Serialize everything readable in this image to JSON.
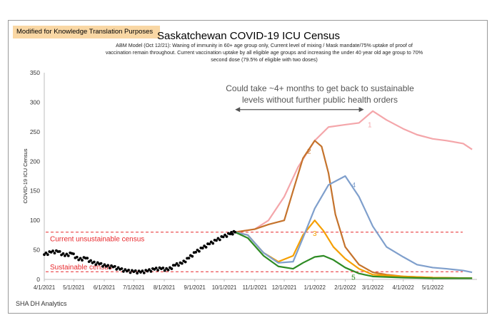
{
  "banner": "Modified for Knowledge Translation Purposes",
  "footer": "SHA DH Analytics",
  "chart_data": {
    "type": "line",
    "title": "Saskatchewan COVID-19 ICU Census",
    "subtitle_lines": [
      "ABM Model (Oct 12/21): Waning of immunity in 60+ age group only, Current level of mixing / Mask mandate/75% uptake of proof of",
      "vaccination remain throughout.  Current vaccination uptake by all eligible age groups and increasing the under 40 year old age group to 70%",
      "second dose (79.5% of eligible with two doses)"
    ],
    "ylabel": "COVID-19 ICU Census",
    "ylim": [
      0,
      350
    ],
    "yticks": [
      0,
      50,
      100,
      150,
      200,
      250,
      300,
      350
    ],
    "xlim": [
      "2021-04-01",
      "2022-06-15"
    ],
    "xticks": [
      "2021-04-01",
      "2021-05-01",
      "2021-06-01",
      "2021-07-01",
      "2021-08-01",
      "2021-09-01",
      "2021-10-01",
      "2021-11-01",
      "2021-12-01",
      "2022-01-01",
      "2022-02-01",
      "2022-03-01",
      "2022-04-01",
      "2022-05-01"
    ],
    "xtick_labels": [
      "4/1/2021",
      "5/1/2021",
      "6/1/2021",
      "7/1/2021",
      "8/1/2021",
      "9/1/2021",
      "10/1/2021",
      "11/1/2021",
      "12/1/2021",
      "1/1/2022",
      "2/1/2022",
      "3/1/2022",
      "4/1/2022",
      "5/1/2022"
    ],
    "observed": {
      "color": "#000000",
      "x": [
        "2021-04-01",
        "2021-04-08",
        "2021-04-15",
        "2021-04-22",
        "2021-04-29",
        "2021-05-06",
        "2021-05-13",
        "2021-05-20",
        "2021-05-27",
        "2021-06-03",
        "2021-06-10",
        "2021-06-17",
        "2021-06-24",
        "2021-07-01",
        "2021-07-08",
        "2021-07-15",
        "2021-07-22",
        "2021-07-29",
        "2021-08-05",
        "2021-08-12",
        "2021-08-19",
        "2021-08-26",
        "2021-09-02",
        "2021-09-09",
        "2021-09-16",
        "2021-09-23",
        "2021-09-30",
        "2021-10-07",
        "2021-10-12"
      ],
      "y": [
        42,
        46,
        47,
        40,
        44,
        33,
        36,
        28,
        26,
        22,
        21,
        17,
        14,
        13,
        12,
        14,
        17,
        18,
        16,
        24,
        27,
        36,
        46,
        53,
        60,
        66,
        72,
        77,
        80
      ]
    },
    "series": [
      {
        "name": "1",
        "color": "#f4a6aa",
        "x": [
          "2021-10-12",
          "2021-11-01",
          "2021-11-15",
          "2021-12-01",
          "2021-12-15",
          "2022-01-01",
          "2022-01-15",
          "2022-02-01",
          "2022-02-15",
          "2022-03-01",
          "2022-03-15",
          "2022-04-01",
          "2022-04-15",
          "2022-05-01",
          "2022-05-15",
          "2022-06-01",
          "2022-06-10"
        ],
        "y": [
          80,
          85,
          100,
          140,
          190,
          235,
          258,
          262,
          265,
          285,
          270,
          255,
          245,
          238,
          235,
          230,
          220
        ]
      },
      {
        "name": "2",
        "color": "#c5732c",
        "x": [
          "2021-10-12",
          "2021-11-01",
          "2021-11-15",
          "2021-12-01",
          "2021-12-10",
          "2021-12-20",
          "2022-01-01",
          "2022-01-08",
          "2022-01-15",
          "2022-01-22",
          "2022-02-01",
          "2022-02-15",
          "2022-03-01",
          "2022-03-15",
          "2022-04-01",
          "2022-05-01",
          "2022-06-10"
        ],
        "y": [
          80,
          85,
          93,
          100,
          150,
          205,
          235,
          225,
          180,
          110,
          55,
          25,
          12,
          8,
          5,
          3,
          2
        ]
      },
      {
        "name": "3",
        "color": "#f59f00",
        "x": [
          "2021-10-12",
          "2021-10-25",
          "2021-11-10",
          "2021-11-25",
          "2021-12-10",
          "2021-12-20",
          "2022-01-01",
          "2022-01-10",
          "2022-01-20",
          "2022-02-01",
          "2022-02-15",
          "2022-03-01",
          "2022-04-01",
          "2022-05-01",
          "2022-06-10"
        ],
        "y": [
          80,
          75,
          45,
          30,
          40,
          75,
          100,
          82,
          55,
          35,
          18,
          8,
          5,
          3,
          2
        ]
      },
      {
        "name": "4",
        "color": "#7f9fcc",
        "x": [
          "2021-10-12",
          "2021-10-25",
          "2021-11-10",
          "2021-11-25",
          "2021-12-10",
          "2021-12-20",
          "2022-01-01",
          "2022-01-15",
          "2022-02-01",
          "2022-02-15",
          "2022-03-01",
          "2022-03-15",
          "2022-04-01",
          "2022-04-15",
          "2022-05-01",
          "2022-05-15",
          "2022-06-01",
          "2022-06-10"
        ],
        "y": [
          80,
          75,
          45,
          28,
          30,
          70,
          120,
          160,
          175,
          140,
          90,
          55,
          38,
          25,
          20,
          18,
          15,
          12
        ]
      },
      {
        "name": "5",
        "color": "#2e8b24",
        "x": [
          "2021-10-12",
          "2021-10-25",
          "2021-11-10",
          "2021-11-25",
          "2021-12-10",
          "2021-12-20",
          "2022-01-01",
          "2022-01-10",
          "2022-01-20",
          "2022-02-01",
          "2022-02-15",
          "2022-03-01",
          "2022-04-01",
          "2022-05-01",
          "2022-06-10"
        ],
        "y": [
          80,
          70,
          40,
          22,
          18,
          28,
          38,
          40,
          33,
          20,
          10,
          5,
          3,
          2,
          2
        ]
      }
    ],
    "reference_lines": [
      {
        "label": "Current unsustainable census",
        "y": 80,
        "color": "#e8282c"
      },
      {
        "label": "Sustainable census",
        "y": 13,
        "color": "#e8282c"
      }
    ],
    "annotation": {
      "lines": [
        "Could take ~4+ months to get back to sustainable",
        "levels without further public health orders"
      ],
      "arrow": [
        "2021-10-12",
        "2022-02-20"
      ],
      "arrow_y": 290
    },
    "grid": false
  }
}
